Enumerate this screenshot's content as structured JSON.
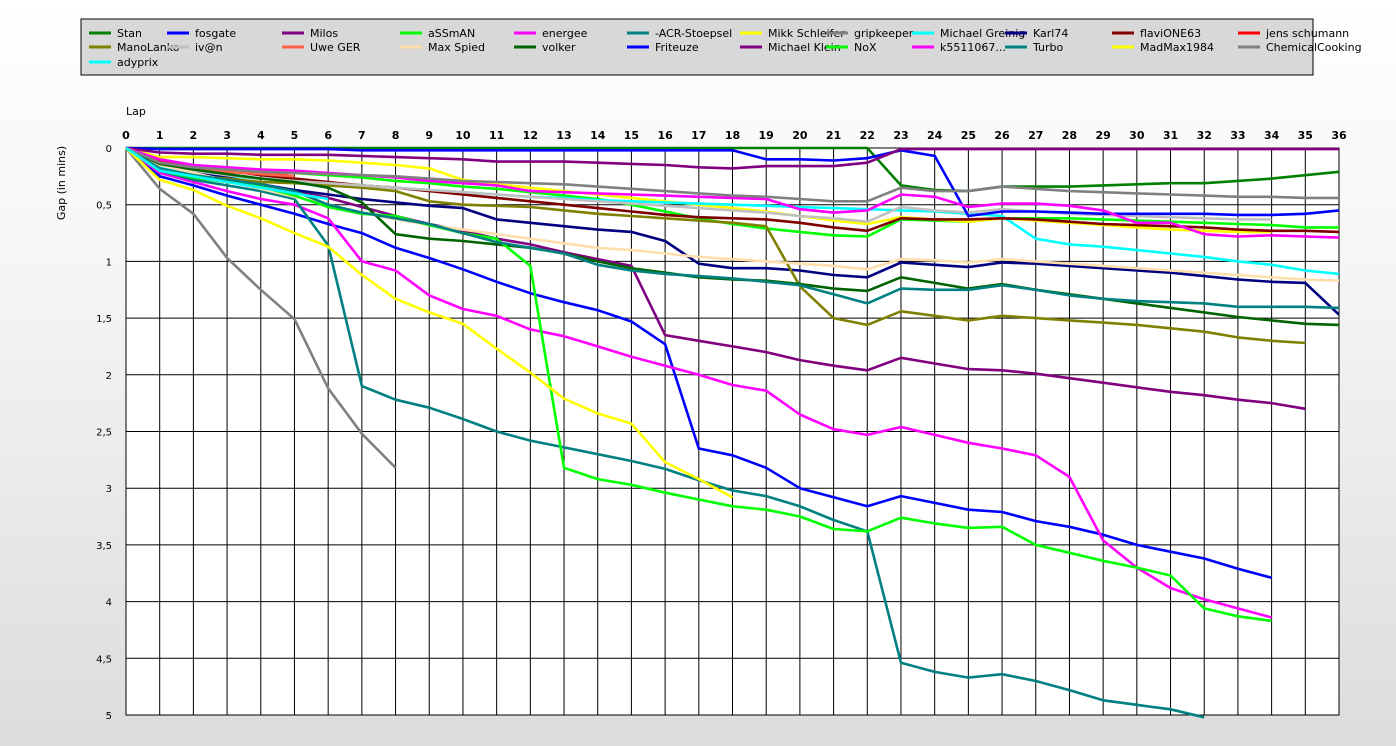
{
  "chart_data": {
    "type": "line",
    "title": "",
    "xlabel": "Lap",
    "ylabel": "Gap (in mins)",
    "xlim": [
      0,
      36
    ],
    "ylim": [
      0,
      5
    ],
    "y_inverted": true,
    "x_ticks": [
      0,
      1,
      2,
      3,
      4,
      5,
      6,
      7,
      8,
      9,
      10,
      11,
      12,
      13,
      14,
      15,
      16,
      17,
      18,
      19,
      20,
      21,
      22,
      23,
      24,
      25,
      26,
      27,
      28,
      29,
      30,
      31,
      32,
      33,
      34,
      35,
      36
    ],
    "y_ticks": [
      0,
      0.5,
      1,
      1.5,
      2,
      2.5,
      3,
      3.5,
      4,
      4.5,
      5
    ],
    "y_tick_labels": [
      "0",
      "0,5",
      "1",
      "1,5",
      "2",
      "2,5",
      "3",
      "3,5",
      "4",
      "4,5",
      "5"
    ],
    "grid": true,
    "legend_position": "top",
    "series": [
      {
        "name": "Stan",
        "color": "#008000",
        "values": [
          0,
          0,
          0,
          0,
          0,
          0,
          0,
          0,
          0,
          0,
          0,
          0,
          0,
          0,
          0,
          0,
          0,
          0,
          0,
          0,
          0,
          0,
          0,
          0.33,
          0.37,
          0.38,
          0.34,
          0.34,
          0.34,
          0.33,
          0.32,
          0.31,
          0.31,
          0.29,
          0.27,
          0.24,
          0.21
        ]
      },
      {
        "name": "fosgate",
        "color": "#0000ff",
        "values": [
          0,
          0.25,
          0.33,
          0.42,
          0.5,
          0.58,
          0.67,
          0.75,
          0.88,
          0.97,
          1.07,
          1.18,
          1.28,
          1.36,
          1.43,
          1.53,
          1.73,
          2.65,
          2.71,
          2.82,
          3.0,
          3.08,
          3.16,
          3.07,
          3.13,
          3.19,
          3.21,
          3.29,
          3.34,
          3.41,
          3.5,
          3.56,
          3.62,
          3.71,
          3.79
        ]
      },
      {
        "name": "Milos",
        "color": "#800080",
        "values": [
          0,
          0.18,
          0.24,
          0.28,
          0.32,
          0.38,
          0.44,
          0.52,
          0.6,
          0.67,
          0.73,
          0.8,
          0.85,
          0.92,
          0.98,
          1.04,
          1.65,
          1.7,
          1.75,
          1.8,
          1.87,
          1.92,
          1.96,
          1.85,
          1.9,
          1.95,
          1.96,
          1.99,
          2.03,
          2.07,
          2.11,
          2.15,
          2.18,
          2.22,
          2.25,
          2.3
        ]
      },
      {
        "name": "aSSmAN",
        "color": "#00ff00",
        "values": [
          0,
          0.1,
          0.15,
          0.18,
          0.2,
          0.22,
          0.24,
          0.26,
          0.29,
          0.31,
          0.34,
          0.36,
          0.39,
          0.42,
          0.45,
          0.5,
          0.56,
          0.62,
          0.67,
          0.71,
          0.74,
          0.77,
          0.78,
          0.63,
          0.64,
          0.65,
          0.62,
          0.62,
          0.62,
          0.63,
          0.64,
          0.65,
          0.66,
          0.67,
          0.68,
          0.7,
          0.7
        ]
      },
      {
        "name": "energee",
        "color": "#ff00ff",
        "values": [
          0,
          0.22,
          0.3,
          0.38,
          0.45,
          0.5,
          0.62,
          1.0,
          1.08,
          1.3,
          1.42,
          1.48,
          1.6,
          1.66,
          1.75,
          1.84,
          1.92,
          2.0,
          2.09,
          2.14,
          2.35,
          2.48,
          2.53,
          2.46,
          2.53,
          2.6,
          2.65,
          2.71,
          2.9,
          3.46,
          3.7,
          3.88,
          3.98,
          4.06,
          4.14
        ]
      },
      {
        "name": "-ACR-Stoepsel",
        "color": "#008080",
        "values": [
          0,
          0.2,
          0.28,
          0.33,
          0.38,
          0.45,
          0.86,
          2.1,
          2.22,
          2.29,
          2.39,
          2.5,
          2.58,
          2.64,
          2.7,
          2.76,
          2.83,
          2.93,
          3.02,
          3.07,
          3.16,
          3.28,
          3.38,
          4.54,
          4.62,
          4.67,
          4.64,
          4.7,
          4.78,
          4.87,
          4.91,
          4.95,
          5.02
        ]
      },
      {
        "name": "Mikk Schleifer",
        "color": "#ffff00",
        "values": [
          0,
          0.08,
          0.08,
          0.09,
          0.1,
          0.1,
          0.11,
          0.13,
          0.15,
          0.18,
          0.28,
          0.32,
          0.35,
          0.38,
          0.41,
          0.44,
          0.47,
          0.5,
          0.53,
          0.56,
          0.6,
          0.64,
          0.67,
          0.61,
          0.63,
          0.65,
          0.62,
          0.64,
          0.66,
          0.68,
          0.7,
          0.72,
          0.73,
          0.74,
          0.74
        ]
      },
      {
        "name": "gripkeeper",
        "color": "#808080",
        "values": [
          0,
          0.36,
          0.58,
          0.97,
          1.25,
          1.51,
          2.12,
          2.52,
          2.82
        ]
      },
      {
        "name": "Michael Greinig",
        "color": "#00ffff",
        "values": [
          0,
          0.17,
          0.22,
          0.25,
          0.27,
          0.29,
          0.31,
          0.33,
          0.35,
          0.37,
          0.39,
          0.41,
          0.43,
          0.44,
          0.46,
          0.47,
          0.48,
          0.49,
          0.5,
          0.51,
          0.52,
          0.53,
          0.54,
          0.55,
          0.56,
          0.58,
          0.6,
          0.8,
          0.85,
          0.87,
          0.9,
          0.93,
          0.96,
          1.0,
          1.03,
          1.08,
          1.11
        ]
      },
      {
        "name": "Karl74",
        "color": "#000080",
        "values": [
          0,
          0.14,
          0.2,
          0.26,
          0.32,
          0.37,
          0.41,
          0.45,
          0.48,
          0.51,
          0.53,
          0.63,
          0.66,
          0.69,
          0.72,
          0.74,
          0.82,
          1.02,
          1.06,
          1.06,
          1.08,
          1.12,
          1.14,
          1.01,
          1.03,
          1.05,
          1.01,
          1.02,
          1.04,
          1.06,
          1.08,
          1.1,
          1.13,
          1.16,
          1.18,
          1.19,
          1.47
        ]
      },
      {
        "name": "flaviONE63",
        "color": "#800000",
        "values": [
          0,
          0.12,
          0.16,
          0.2,
          0.24,
          0.27,
          0.3,
          0.33,
          0.35,
          0.38,
          0.41,
          0.44,
          0.47,
          0.5,
          0.53,
          0.56,
          0.59,
          0.61,
          0.62,
          0.63,
          0.66,
          0.7,
          0.73,
          0.62,
          0.63,
          0.63,
          0.62,
          0.63,
          0.65,
          0.67,
          0.68,
          0.69,
          0.7,
          0.72,
          0.73,
          0.73,
          0.74
        ]
      },
      {
        "name": "jens  schumann",
        "color": "#ff0000",
        "values": [
          0,
          0.12,
          0.16,
          0.19,
          0.22,
          0.25
        ]
      },
      {
        "name": "ManoLanko",
        "color": "#808000",
        "values": [
          0,
          0.2,
          0.25,
          0.27,
          0.3,
          0.31,
          0.33,
          0.35,
          0.38,
          0.47,
          0.5,
          0.51,
          0.52,
          0.55,
          0.58,
          0.6,
          0.62,
          0.64,
          0.66,
          0.69,
          1.22,
          1.5,
          1.56,
          1.44,
          1.48,
          1.52,
          1.48,
          1.5,
          1.52,
          1.54,
          1.56,
          1.59,
          1.62,
          1.67,
          1.7,
          1.72
        ]
      },
      {
        "name": "iv@n",
        "color": "#c0c0c0",
        "values": [
          0,
          0.15,
          0.2,
          0.24,
          0.27,
          0.29,
          0.31,
          0.33,
          0.35,
          0.37,
          0.39,
          0.41,
          0.43,
          0.45,
          0.47,
          0.49,
          0.51,
          0.53,
          0.55,
          0.57,
          0.6,
          0.62,
          0.65,
          0.52,
          0.55,
          0.57,
          0.54,
          0.56,
          0.58,
          0.59,
          0.6,
          0.61,
          0.62,
          0.63,
          0.63
        ]
      },
      {
        "name": "Uwe GER",
        "color": "#ff6347",
        "values": [
          0,
          0.14,
          0.18,
          0.21,
          0.23,
          0.25
        ]
      },
      {
        "name": "Max Spied",
        "color": "#ffdead",
        "values": [
          0,
          0.15,
          0.22,
          0.29,
          0.36,
          0.43,
          0.5,
          0.57,
          0.63,
          0.68,
          0.72,
          0.76,
          0.8,
          0.84,
          0.88,
          0.9,
          0.93,
          0.96,
          0.98,
          1.0,
          1.02,
          1.04,
          1.07,
          0.98,
          0.99,
          1.01,
          0.98,
          1.0,
          1.02,
          1.04,
          1.06,
          1.08,
          1.1,
          1.12,
          1.14,
          1.16,
          1.17
        ]
      },
      {
        "name": "volker",
        "color": "#006400",
        "values": [
          0,
          0.14,
          0.19,
          0.23,
          0.27,
          0.3,
          0.35,
          0.48,
          0.76,
          0.8,
          0.82,
          0.85,
          0.88,
          0.93,
          1.0,
          1.06,
          1.1,
          1.14,
          1.16,
          1.17,
          1.2,
          1.24,
          1.26,
          1.14,
          1.19,
          1.24,
          1.2,
          1.25,
          1.29,
          1.33,
          1.37,
          1.41,
          1.45,
          1.49,
          1.52,
          1.55,
          1.56
        ]
      },
      {
        "name": "Friteuze",
        "color": "#0000ff",
        "values": [
          0,
          0.01,
          0.01,
          0.01,
          0.01,
          0.01,
          0.01,
          0.02,
          0.02,
          0.02,
          0.02,
          0.02,
          0.02,
          0.02,
          0.02,
          0.02,
          0.02,
          0.02,
          0.02,
          0.1,
          0.1,
          0.11,
          0.09,
          0.02,
          0.07,
          0.6,
          0.56,
          0.56,
          0.57,
          0.58,
          0.58,
          0.58,
          0.58,
          0.59,
          0.59,
          0.58,
          0.55
        ]
      },
      {
        "name": "Michael Klein",
        "color": "#800080",
        "values": [
          0,
          0.04,
          0.05,
          0.05,
          0.06,
          0.06,
          0.06,
          0.07,
          0.08,
          0.09,
          0.1,
          0.12,
          0.12,
          0.12,
          0.13,
          0.14,
          0.15,
          0.17,
          0.18,
          0.16,
          0.16,
          0.16,
          0.13,
          0.01,
          0.01,
          0.01,
          0.01,
          0.01,
          0.01,
          0.01,
          0.01,
          0.01,
          0.01,
          0.01,
          0.01,
          0.01,
          0.01
        ]
      },
      {
        "name": "NoX",
        "color": "#00ff00",
        "values": [
          0,
          0.2,
          0.26,
          0.3,
          0.34,
          0.42,
          0.52,
          0.58,
          0.6,
          0.68,
          0.75,
          0.8,
          1.04,
          2.82,
          2.92,
          2.97,
          3.04,
          3.1,
          3.16,
          3.19,
          3.25,
          3.36,
          3.38,
          3.26,
          3.31,
          3.35,
          3.34,
          3.5,
          3.57,
          3.64,
          3.7,
          3.77,
          4.06,
          4.13,
          4.17
        ]
      },
      {
        "name": "k5511067...",
        "color": "#ff00ff",
        "values": [
          0,
          0.1,
          0.15,
          0.17,
          0.19,
          0.2,
          0.22,
          0.24,
          0.26,
          0.29,
          0.31,
          0.33,
          0.38,
          0.39,
          0.4,
          0.41,
          0.42,
          0.43,
          0.44,
          0.45,
          0.54,
          0.57,
          0.55,
          0.41,
          0.43,
          0.52,
          0.49,
          0.49,
          0.51,
          0.55,
          0.66,
          0.66,
          0.76,
          0.78,
          0.77,
          0.78,
          0.79
        ]
      },
      {
        "name": "Turbo",
        "color": "#008080",
        "values": [
          0,
          0.18,
          0.24,
          0.28,
          0.32,
          0.38,
          0.5,
          0.57,
          0.62,
          0.67,
          0.75,
          0.83,
          0.88,
          0.93,
          1.03,
          1.08,
          1.11,
          1.13,
          1.15,
          1.18,
          1.21,
          1.29,
          1.37,
          1.24,
          1.25,
          1.25,
          1.21,
          1.25,
          1.3,
          1.33,
          1.35,
          1.36,
          1.37,
          1.4,
          1.4,
          1.4,
          1.41
        ]
      },
      {
        "name": "MadMax1984",
        "color": "#ffff00",
        "values": [
          0,
          0.28,
          0.37,
          0.51,
          0.62,
          0.75,
          0.87,
          1.12,
          1.33,
          1.45,
          1.55,
          1.77,
          1.98,
          2.21,
          2.34,
          2.43,
          2.77,
          2.92,
          3.08
        ]
      },
      {
        "name": "ChemicalCooking",
        "color": "#808080",
        "values": [
          0,
          0.13,
          0.17,
          0.19,
          0.21,
          0.22,
          0.23,
          0.24,
          0.25,
          0.27,
          0.29,
          0.3,
          0.31,
          0.32,
          0.34,
          0.36,
          0.38,
          0.4,
          0.42,
          0.43,
          0.45,
          0.47,
          0.47,
          0.35,
          0.38,
          0.38,
          0.34,
          0.36,
          0.38,
          0.39,
          0.4,
          0.41,
          0.42,
          0.43,
          0.43,
          0.44,
          0.44
        ]
      },
      {
        "name": "adyprix",
        "color": "#00ffff",
        "values": [
          0,
          0.2,
          0.25,
          0.3,
          0.35,
          0.4,
          0.45
        ]
      }
    ]
  }
}
